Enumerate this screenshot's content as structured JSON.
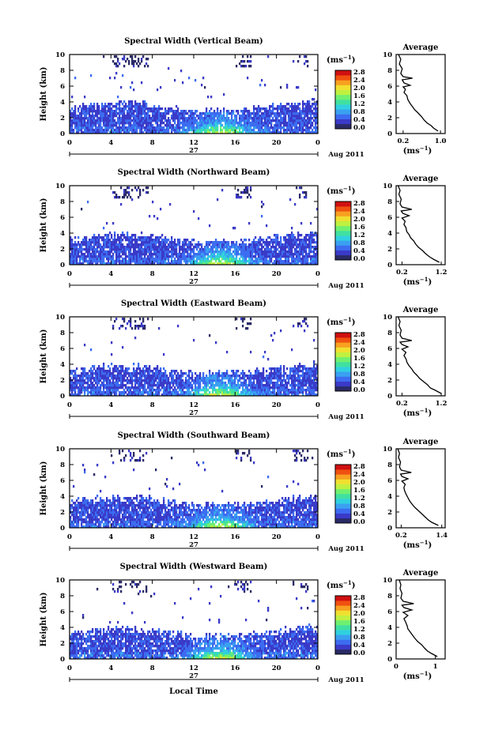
{
  "common": {
    "ylabel": "Height (km)",
    "xlabel": "Local Time",
    "date_label": "Aug 2011",
    "day_label": "27",
    "unit_label": "(ms",
    "unit_exp": "−1",
    "avg_title": "Average",
    "avg_xlabel": "(ms",
    "x_ticks": [
      "0",
      "4",
      "8",
      "12",
      "16",
      "20",
      "0"
    ],
    "y_ticks": [
      "0",
      "2",
      "4",
      "6",
      "8",
      "10"
    ],
    "colorbar_ticks": [
      "0.0",
      "0.4",
      "0.8",
      "1.2",
      "1.6",
      "2.0",
      "2.4",
      "2.8"
    ],
    "colormap": [
      "#2a2a66",
      "#3a3ac8",
      "#3c6cf0",
      "#3aa0f0",
      "#30d0e0",
      "#40e0a0",
      "#70f070",
      "#c0f040",
      "#f0e030",
      "#f8a020",
      "#f05010",
      "#d01010"
    ]
  },
  "chart_data": [
    {
      "type": "heatmap",
      "title": "Spectral Width (Vertical Beam)",
      "xlabel": "Local Time",
      "ylabel": "Height (km)",
      "xlim": [
        0,
        24
      ],
      "ylim": [
        0,
        10
      ],
      "colorbar": {
        "label": "(ms⁻¹)",
        "range": [
          0.0,
          2.8
        ]
      },
      "average": {
        "title": "Average",
        "xlabel": "(ms⁻¹)",
        "xticks": [
          "0.2",
          "1.0"
        ],
        "xlim": [
          0.05,
          1.1
        ],
        "profile": [
          [
            0.95,
            0.3
          ],
          [
            0.85,
            0.7
          ],
          [
            0.8,
            1.0
          ],
          [
            0.72,
            1.3
          ],
          [
            0.65,
            1.7
          ],
          [
            0.6,
            2.1
          ],
          [
            0.52,
            2.6
          ],
          [
            0.45,
            3.0
          ],
          [
            0.4,
            3.4
          ],
          [
            0.35,
            3.8
          ],
          [
            0.3,
            4.3
          ],
          [
            0.28,
            4.8
          ],
          [
            0.22,
            5.2
          ],
          [
            0.25,
            5.6
          ],
          [
            0.2,
            5.9
          ],
          [
            0.35,
            6.1
          ],
          [
            0.22,
            6.4
          ],
          [
            0.18,
            6.8
          ],
          [
            0.4,
            7.0
          ],
          [
            0.2,
            7.2
          ],
          [
            0.15,
            7.6
          ],
          [
            0.18,
            8.2
          ],
          [
            0.12,
            8.8
          ],
          [
            0.15,
            9.4
          ],
          [
            0.1,
            10
          ]
        ]
      }
    },
    {
      "type": "heatmap",
      "title": "Spectral Width (Northward Beam)",
      "xlabel": "Local Time",
      "ylabel": "Height (km)",
      "xlim": [
        0,
        24
      ],
      "ylim": [
        0,
        10
      ],
      "colorbar": {
        "label": "(ms⁻¹)",
        "range": [
          0.0,
          2.8
        ]
      },
      "average": {
        "title": "Average",
        "xlabel": "(ms⁻¹)",
        "xticks": [
          "0.2",
          "1.2"
        ],
        "xlim": [
          0.05,
          1.3
        ],
        "profile": [
          [
            1.15,
            0.3
          ],
          [
            1.0,
            0.7
          ],
          [
            0.9,
            1.0
          ],
          [
            0.8,
            1.4
          ],
          [
            0.72,
            1.8
          ],
          [
            0.62,
            2.2
          ],
          [
            0.55,
            2.6
          ],
          [
            0.5,
            3.0
          ],
          [
            0.42,
            3.4
          ],
          [
            0.38,
            3.8
          ],
          [
            0.32,
            4.2
          ],
          [
            0.3,
            4.7
          ],
          [
            0.25,
            5.1
          ],
          [
            0.28,
            5.5
          ],
          [
            0.2,
            5.9
          ],
          [
            0.38,
            6.2
          ],
          [
            0.22,
            6.5
          ],
          [
            0.18,
            6.8
          ],
          [
            0.45,
            7.0
          ],
          [
            0.2,
            7.3
          ],
          [
            0.15,
            7.7
          ],
          [
            0.18,
            8.3
          ],
          [
            0.12,
            8.9
          ],
          [
            0.15,
            9.4
          ],
          [
            0.1,
            10
          ]
        ]
      }
    },
    {
      "type": "heatmap",
      "title": "Spectral Width (Eastward Beam)",
      "xlabel": "Local Time",
      "ylabel": "Height (km)",
      "xlim": [
        0,
        24
      ],
      "ylim": [
        0,
        10
      ],
      "colorbar": {
        "label": "(ms⁻¹)",
        "range": [
          0.0,
          2.8
        ]
      },
      "average": {
        "title": "Average",
        "xlabel": "(ms⁻¹)",
        "xticks": [
          "0.2",
          "1.2"
        ],
        "xlim": [
          0.05,
          1.3
        ],
        "profile": [
          [
            1.2,
            0.3
          ],
          [
            1.05,
            0.7
          ],
          [
            0.92,
            1.0
          ],
          [
            0.85,
            1.4
          ],
          [
            0.75,
            1.8
          ],
          [
            0.65,
            2.2
          ],
          [
            0.58,
            2.6
          ],
          [
            0.5,
            3.0
          ],
          [
            0.45,
            3.4
          ],
          [
            0.38,
            3.8
          ],
          [
            0.33,
            4.2
          ],
          [
            0.3,
            4.7
          ],
          [
            0.25,
            5.1
          ],
          [
            0.3,
            5.5
          ],
          [
            0.2,
            5.9
          ],
          [
            0.35,
            6.2
          ],
          [
            0.2,
            6.5
          ],
          [
            0.15,
            6.8
          ],
          [
            0.45,
            7.0
          ],
          [
            0.2,
            7.3
          ],
          [
            0.15,
            7.7
          ],
          [
            0.18,
            8.3
          ],
          [
            0.12,
            8.9
          ],
          [
            0.15,
            9.4
          ],
          [
            0.1,
            10
          ]
        ]
      }
    },
    {
      "type": "heatmap",
      "title": "Spectral Width (Southward Beam)",
      "xlabel": "Local Time",
      "ylabel": "Height (km)",
      "xlim": [
        0,
        24
      ],
      "ylim": [
        0,
        10
      ],
      "colorbar": {
        "label": "(ms⁻¹)",
        "range": [
          0.0,
          2.8
        ]
      },
      "average": {
        "title": "Average",
        "xlabel": "(ms⁻¹)",
        "xticks": [
          "0.2",
          "1.4"
        ],
        "xlim": [
          0.05,
          1.5
        ],
        "profile": [
          [
            1.3,
            0.3
          ],
          [
            1.1,
            0.7
          ],
          [
            1.0,
            1.0
          ],
          [
            0.9,
            1.4
          ],
          [
            0.8,
            1.8
          ],
          [
            0.7,
            2.2
          ],
          [
            0.6,
            2.6
          ],
          [
            0.52,
            3.0
          ],
          [
            0.45,
            3.4
          ],
          [
            0.4,
            3.8
          ],
          [
            0.35,
            4.2
          ],
          [
            0.3,
            4.7
          ],
          [
            0.28,
            5.1
          ],
          [
            0.32,
            5.5
          ],
          [
            0.22,
            5.9
          ],
          [
            0.4,
            6.2
          ],
          [
            0.22,
            6.5
          ],
          [
            0.18,
            6.8
          ],
          [
            0.5,
            7.0
          ],
          [
            0.2,
            7.3
          ],
          [
            0.15,
            7.7
          ],
          [
            0.18,
            8.3
          ],
          [
            0.12,
            8.9
          ],
          [
            0.15,
            9.4
          ],
          [
            0.1,
            10
          ]
        ]
      }
    },
    {
      "type": "heatmap",
      "title": "Spectral Width (Westward Beam)",
      "xlabel": "Local Time",
      "ylabel": "Height (km)",
      "xlim": [
        0,
        24
      ],
      "ylim": [
        0,
        10
      ],
      "colorbar": {
        "label": "(ms⁻¹)",
        "range": [
          0.0,
          2.8
        ]
      },
      "average": {
        "title": "Average",
        "xlabel": "(ms⁻¹)",
        "xticks": [
          "0",
          "1"
        ],
        "xlim": [
          0,
          1.25
        ],
        "profile": [
          [
            1.05,
            0.3
          ],
          [
            0.9,
            0.7
          ],
          [
            0.8,
            1.0
          ],
          [
            0.72,
            1.4
          ],
          [
            0.65,
            1.8
          ],
          [
            0.55,
            2.2
          ],
          [
            0.48,
            2.6
          ],
          [
            0.42,
            3.0
          ],
          [
            0.36,
            3.4
          ],
          [
            0.3,
            3.8
          ],
          [
            0.28,
            4.2
          ],
          [
            0.24,
            4.7
          ],
          [
            0.2,
            5.1
          ],
          [
            0.3,
            5.5
          ],
          [
            0.18,
            5.9
          ],
          [
            0.4,
            6.2
          ],
          [
            0.2,
            6.5
          ],
          [
            0.15,
            6.8
          ],
          [
            0.45,
            7.0
          ],
          [
            0.18,
            7.3
          ],
          [
            0.12,
            7.7
          ],
          [
            0.15,
            8.3
          ],
          [
            0.1,
            8.9
          ],
          [
            0.12,
            9.4
          ],
          [
            0.08,
            10
          ]
        ]
      }
    }
  ]
}
